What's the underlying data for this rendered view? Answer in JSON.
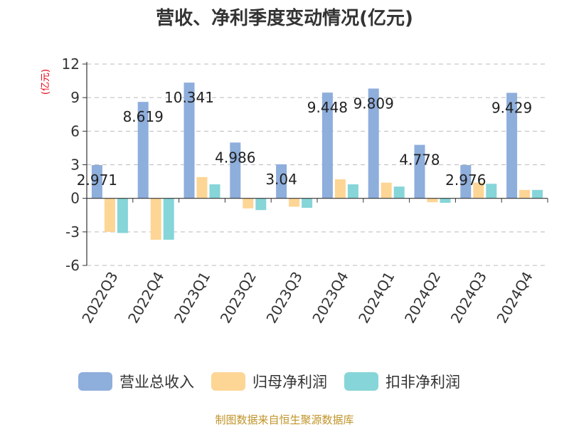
{
  "chart_data": {
    "type": "bar",
    "title": "营收、净利季度变动情况(亿元)",
    "unit_label": "(亿元)",
    "categories": [
      "2022Q3",
      "2022Q4",
      "2023Q1",
      "2023Q2",
      "2023Q3",
      "2023Q4",
      "2024Q1",
      "2024Q2",
      "2024Q3",
      "2024Q4"
    ],
    "series": [
      {
        "name": "营业总收入",
        "color": "#8eaedc",
        "values": [
          2.971,
          8.619,
          10.341,
          4.986,
          3.04,
          9.448,
          9.809,
          4.778,
          2.976,
          9.429
        ],
        "labels": [
          "2.971",
          "8.619",
          "10.341",
          "4.986",
          "3.04",
          "9.448",
          "9.809",
          "4.778",
          "2.976",
          "9.429"
        ]
      },
      {
        "name": "归母净利润",
        "color": "#fdd595",
        "values": [
          -3.0,
          -3.7,
          1.9,
          -0.9,
          -0.75,
          1.7,
          1.4,
          -0.35,
          1.4,
          0.75
        ]
      },
      {
        "name": "扣非净利润",
        "color": "#86d5d8",
        "values": [
          -3.1,
          -3.7,
          1.25,
          -1.05,
          -0.85,
          1.25,
          1.05,
          -0.4,
          1.3,
          0.75
        ]
      }
    ],
    "ylim": [
      -6,
      12
    ],
    "yticks": [
      "12",
      "9",
      "6",
      "3",
      "0",
      "-3",
      "-6"
    ],
    "grid": true,
    "legend": "bottom",
    "source": "制图数据来自恒生聚源数据库"
  }
}
